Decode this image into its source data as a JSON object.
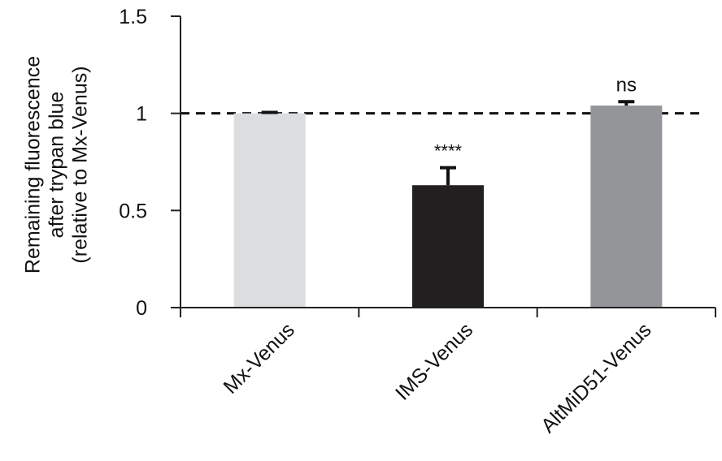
{
  "chart_data": {
    "type": "bar",
    "categories": [
      "Mx-Venus",
      "IMS-Venus",
      "AltMiD51-Venus"
    ],
    "values": [
      1.0,
      0.63,
      1.04
    ],
    "errors": [
      0.005,
      0.09,
      0.02
    ],
    "significance": [
      "",
      "****",
      "ns"
    ],
    "bar_colors": [
      "#dcddde",
      "#231f20",
      "#939598"
    ],
    "ylabel_lines": [
      "Remaining fluorescence",
      "after trypan blue",
      "(relative to Mx-Venus)"
    ],
    "ylim": [
      0,
      1.5
    ],
    "yticks": [
      "0",
      "0.5",
      "1",
      "1.5"
    ],
    "ytick_values": [
      0,
      0.5,
      1,
      1.5
    ],
    "reference_line": 1,
    "grid": false
  }
}
